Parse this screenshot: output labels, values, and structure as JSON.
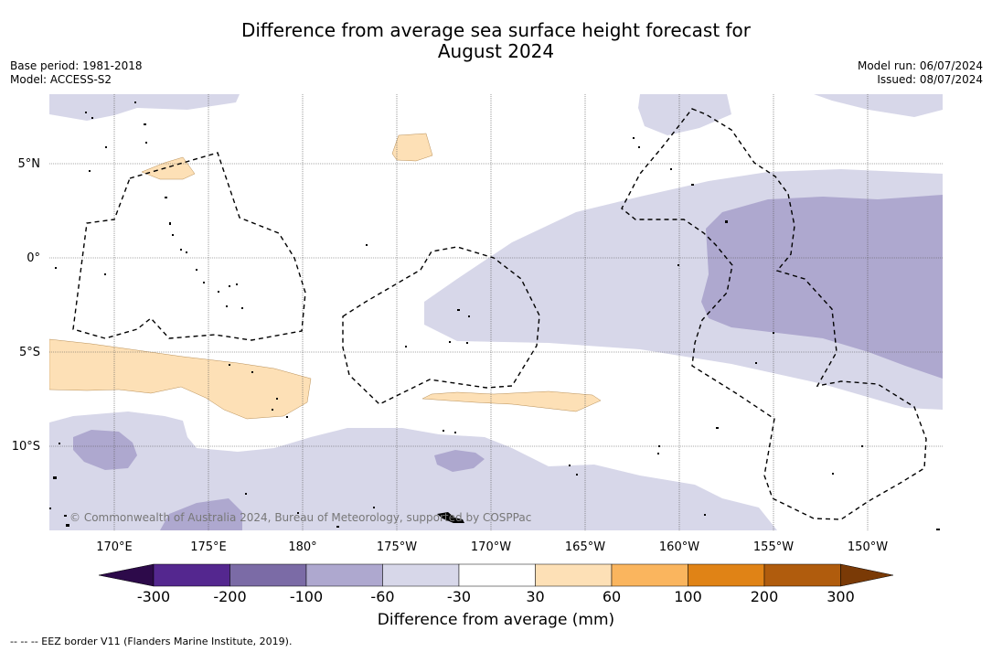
{
  "title_line1": "Difference from average sea surface height forecast for",
  "title_line2": "August 2024",
  "base_period": "Base period: 1981-2018",
  "model": "Model: ACCESS-S2",
  "model_run": "Model run: 06/07/2024",
  "issued": "Issued: 08/07/2024",
  "copyright": "© Commonwealth of Australia 2024, Bureau of Meteorology, supported by COSPPac",
  "lat_labels": [
    "5°N",
    "0°",
    "5°S",
    "10°S"
  ],
  "lon_labels": [
    "170°E",
    "175°E",
    "180°",
    "175°W",
    "170°W",
    "165°W",
    "160°W",
    "155°W",
    "150°W"
  ],
  "colorbar": {
    "ticks": [
      "-300",
      "-200",
      "-100",
      "-60",
      "-30",
      "30",
      "60",
      "100",
      "200",
      "300"
    ],
    "colors": [
      "#2d0a4a",
      "#54278f",
      "#7b6ba6",
      "#aea8cf",
      "#d7d7e9",
      "#ffffff",
      "#fde0b6",
      "#fab55e",
      "#e08316",
      "#b05c0d",
      "#7a3a06"
    ],
    "label": "Difference from average (mm)"
  },
  "footer": "--  --  -- EEZ border V11 (Flanders Marine Institute, 2019)."
}
